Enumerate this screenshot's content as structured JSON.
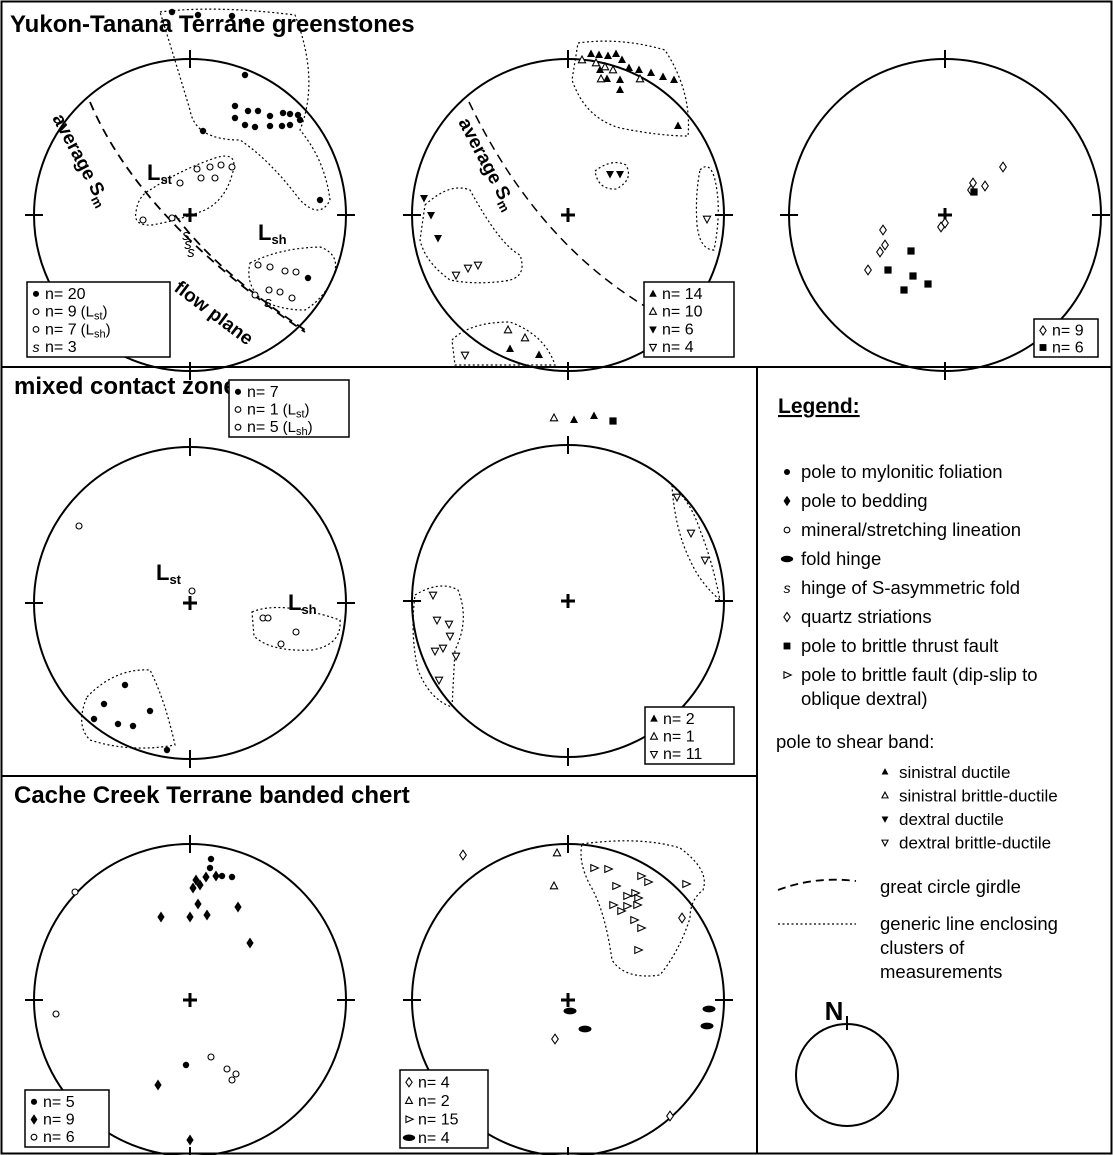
{
  "sections": {
    "yukon": "Yukon-Tanana Terrane greenstones",
    "mixed": "mixed contact zone",
    "cache": "Cache Creek Terrane banded chert"
  },
  "net_labels": {
    "average": "average S",
    "average_sub": "m",
    "flow_plane": "flow plane",
    "L": "L",
    "st": "st",
    "sh": "sh"
  },
  "counts": {
    "yt1": [
      {
        "sym": "filled-circle",
        "label": "n= 20"
      },
      {
        "sym": "open-circle",
        "label": "n=  9",
        "sub": "st"
      },
      {
        "sym": "open-circle",
        "label": "n=  7",
        "sub": "sh"
      },
      {
        "sym": "s-fold",
        "label": "n=  3"
      }
    ],
    "yt2": [
      {
        "sym": "tri-up-filled",
        "label": "n= 14"
      },
      {
        "sym": "tri-up-open",
        "label": "n= 10"
      },
      {
        "sym": "tri-down-filled",
        "label": "n=  6"
      },
      {
        "sym": "tri-down-open",
        "label": "n=  4"
      }
    ],
    "yt3": [
      {
        "sym": "diamond-open",
        "label": "n= 9"
      },
      {
        "sym": "square-filled",
        "label": "n= 6"
      }
    ],
    "mx1": [
      {
        "sym": "filled-circle",
        "label": "n= 7"
      },
      {
        "sym": "open-circle",
        "label": "n=  1",
        "sub": "st"
      },
      {
        "sym": "open-circle",
        "label": "n=  5",
        "sub": "sh"
      }
    ],
    "mx2": [
      {
        "sym": "tri-up-filled",
        "label": "n=  2"
      },
      {
        "sym": "tri-up-open",
        "label": "n=  1"
      },
      {
        "sym": "tri-down-open",
        "label": "n= 11"
      }
    ],
    "cc1": [
      {
        "sym": "filled-circle",
        "label": "n= 5"
      },
      {
        "sym": "diamond-filled",
        "label": "n= 9"
      },
      {
        "sym": "open-circle",
        "label": "n= 6"
      }
    ],
    "cc2": [
      {
        "sym": "diamond-open",
        "label": "n=   4"
      },
      {
        "sym": "tri-up-open",
        "label": "n=   2"
      },
      {
        "sym": "tri-right-open",
        "label": "n= 15"
      },
      {
        "sym": "ellipse-filled",
        "label": "n=   4"
      }
    ]
  },
  "legend": {
    "title": "Legend:",
    "items": [
      {
        "sym": "filled-circle",
        "label": "pole to mylonitic foliation"
      },
      {
        "sym": "diamond-filled",
        "label": "pole to bedding"
      },
      {
        "sym": "open-circle",
        "label": "mineral/stretching lineation"
      },
      {
        "sym": "ellipse-filled",
        "label": "fold hinge"
      },
      {
        "sym": "s-fold",
        "label": "hinge of S-asymmetric fold"
      },
      {
        "sym": "diamond-open",
        "label": "quartz striations"
      },
      {
        "sym": "square-filled",
        "label": "pole to brittle thrust fault"
      },
      {
        "sym": "tri-right-open",
        "label": "pole to brittle fault (dip-slip to",
        "label2": "oblique dextral)"
      }
    ],
    "shear_heading": "pole to shear band:",
    "shear_items": [
      {
        "sym": "tri-up-filled",
        "label": "sinistral ductile"
      },
      {
        "sym": "tri-up-open",
        "label": "sinistral brittle-ductile"
      },
      {
        "sym": "tri-down-filled",
        "label": "dextral ductile"
      },
      {
        "sym": "tri-down-open",
        "label": "dextral brittle-ductile"
      }
    ],
    "lines": [
      {
        "style": "dashed",
        "label": "great circle girdle"
      },
      {
        "style": "dotted",
        "label": "generic line enclosing",
        "label2": "clusters of",
        "label3": "measurements"
      }
    ],
    "north": "N"
  },
  "colors": {
    "ink": "#000000",
    "paper": "#ffffff"
  }
}
